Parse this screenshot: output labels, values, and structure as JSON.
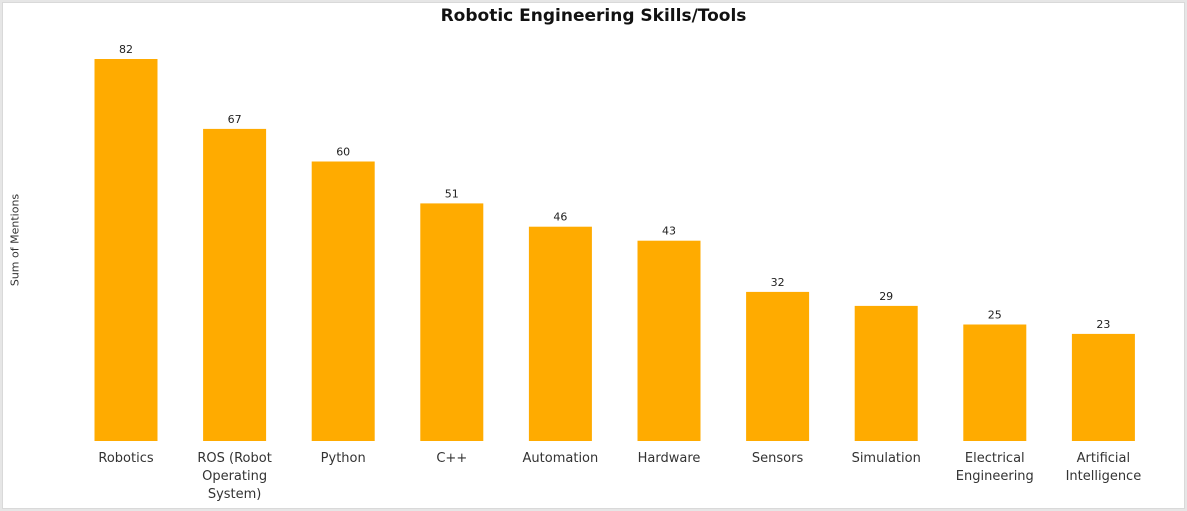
{
  "chart_data": {
    "type": "bar",
    "title": "Robotic Engineering Skills/Tools",
    "xlabel": "",
    "ylabel": "Sum of Mentions",
    "categories": [
      "Robotics",
      "ROS (Robot Operating System)",
      "Python",
      "C++",
      "Automation",
      "Hardware",
      "Sensors",
      "Simulation",
      "Electrical Engineering",
      "Artificial Intelligence"
    ],
    "values": [
      82,
      67,
      60,
      51,
      46,
      43,
      32,
      29,
      25,
      23
    ],
    "ylim": [
      0,
      82
    ],
    "grid": false,
    "bar_color": "#FFAB00"
  }
}
